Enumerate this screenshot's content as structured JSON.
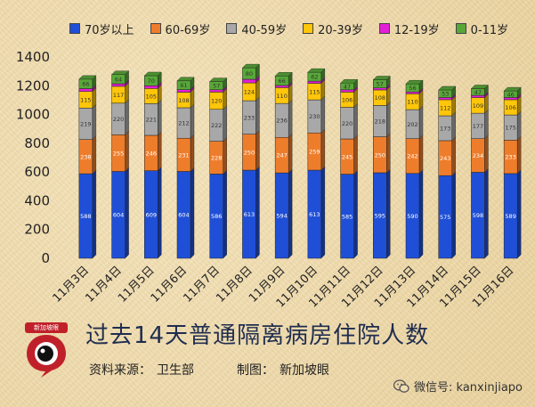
{
  "chart_data": {
    "type": "bar",
    "stacked": true,
    "categories": [
      "11月3日",
      "11月4日",
      "11月5日",
      "11月6日",
      "11月7日",
      "11月8日",
      "11月9日",
      "11月10日",
      "11月11日",
      "11月12日",
      "11月13日",
      "11月14日",
      "11月15日",
      "11月16日"
    ],
    "series": [
      {
        "name": "70岁以上",
        "color": "#1f4fd6",
        "values": [
          588,
          604,
          609,
          604,
          586,
          613,
          594,
          613,
          585,
          595,
          590,
          575,
          598,
          589
        ]
      },
      {
        "name": "60-69岁",
        "color": "#ee7d2b",
        "values": [
          238,
          255,
          246,
          231,
          228,
          250,
          247,
          259,
          245,
          250,
          242,
          243,
          234,
          233
        ]
      },
      {
        "name": "40-59岁",
        "color": "#a8a8a8",
        "values": [
          219,
          220,
          221,
          212,
          222,
          233,
          236,
          230,
          220,
          218,
          202,
          173,
          177,
          175
        ]
      },
      {
        "name": "20-39岁",
        "color": "#ffc60a",
        "values": [
          115,
          117,
          105,
          108,
          120,
          124,
          110,
          115,
          106,
          108,
          110,
          112,
          109,
          106
        ]
      },
      {
        "name": "12-19岁",
        "color": "#e21fd6",
        "values": [
          20,
          18,
          19,
          18,
          16,
          25,
          15,
          15,
          16,
          14,
          13,
          15,
          15,
          15
        ]
      },
      {
        "name": "0-11岁",
        "color": "#58a838",
        "values": [
          66,
          64,
          70,
          61,
          57,
          80,
          66,
          62,
          47,
          57,
          56,
          53,
          47,
          46
        ]
      }
    ],
    "segment_labels": [
      [
        588,
        238,
        219,
        115,
        "",
        66
      ],
      [
        604,
        255,
        220,
        117,
        "",
        64
      ],
      [
        609,
        246,
        221,
        105,
        "",
        70
      ],
      [
        604,
        231,
        212,
        108,
        "",
        61
      ],
      [
        586,
        228,
        222,
        120,
        "",
        57
      ],
      [
        613,
        250,
        233,
        124,
        "",
        80
      ],
      [
        594,
        247,
        236,
        110,
        "",
        66
      ],
      [
        613,
        259,
        230,
        115,
        "",
        62
      ],
      [
        585,
        245,
        220,
        106,
        "",
        47
      ],
      [
        595,
        250,
        218,
        108,
        "",
        57
      ],
      [
        590,
        242,
        202,
        110,
        "",
        56
      ],
      [
        575,
        243,
        173,
        112,
        "",
        53
      ],
      [
        598,
        234,
        177,
        109,
        "",
        47
      ],
      [
        589,
        233,
        175,
        106,
        "",
        46
      ]
    ],
    "ylim": [
      0,
      1400
    ],
    "yticks": [
      0,
      200,
      400,
      600,
      800,
      1000,
      1200,
      1400
    ],
    "grid": false,
    "legend_position": "top",
    "title": "过去14天普通隔离病房住院人数"
  },
  "caption": {
    "title": "过去14天普通隔离病房住院人数",
    "source_label": "资料来源：",
    "source_value": "卫生部",
    "maker_label": "制图：",
    "maker_value": "新加坡眼"
  },
  "logo": {
    "text": "新加坡眼",
    "icon": "speech-bubble-logo-icon"
  },
  "wechat": {
    "text": "微信号: kanxinjiapo",
    "icon": "wechat-icon"
  }
}
